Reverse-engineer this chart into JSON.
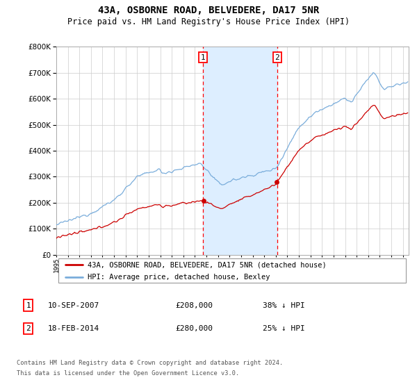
{
  "title": "43A, OSBORNE ROAD, BELVEDERE, DA17 5NR",
  "subtitle": "Price paid vs. HM Land Registry's House Price Index (HPI)",
  "sale1_date_label": "10-SEP-2007",
  "sale1_price": 208000,
  "sale1_year": 2007.71,
  "sale2_date_label": "18-FEB-2014",
  "sale2_price": 280000,
  "sale2_year": 2014.12,
  "legend_line1": "43A, OSBORNE ROAD, BELVEDERE, DA17 5NR (detached house)",
  "legend_line2": "HPI: Average price, detached house, Bexley",
  "annotation1": "1",
  "annotation2": "2",
  "table_row1": [
    "1",
    "10-SEP-2007",
    "£208,000",
    "38% ↓ HPI"
  ],
  "table_row2": [
    "2",
    "18-FEB-2014",
    "£280,000",
    "25% ↓ HPI"
  ],
  "footer1": "Contains HM Land Registry data © Crown copyright and database right 2024.",
  "footer2": "This data is licensed under the Open Government Licence v3.0.",
  "red_line_color": "#cc0000",
  "blue_line_color": "#7aaddb",
  "shade_color": "#ddeeff",
  "grid_color": "#cccccc",
  "ylim": [
    0,
    800000
  ],
  "xlim_start": 1995,
  "xlim_end": 2025.5
}
